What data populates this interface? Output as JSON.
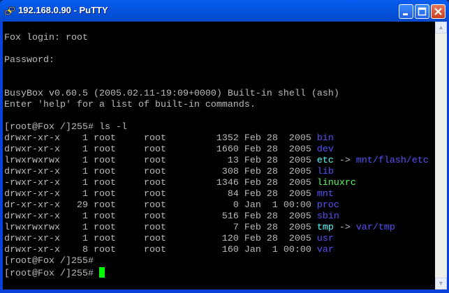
{
  "window": {
    "title": "192.168.0.90 - PuTTY"
  },
  "colors": {
    "default": "#bbbbbb",
    "directory": "#5555ff",
    "symlink": "#55ffff",
    "executable": "#55ff55",
    "cursor": "#00ff00"
  },
  "terminal": {
    "lines": [
      [],
      [
        {
          "text": "Fox login: root"
        }
      ],
      [],
      [
        {
          "text": "Password:"
        }
      ],
      [],
      [],
      [
        {
          "text": "BusyBox v0.60.5 (2005.02.11-19:09+0000) Built-in shell (ash)"
        }
      ],
      [
        {
          "text": "Enter 'help' for a list of built-in commands."
        }
      ],
      [],
      [
        {
          "text": "[root@Fox /]255# ls -l"
        }
      ],
      [
        {
          "text": "drwxr-xr-x    1 root     root         1352 Feb 28  2005 "
        },
        {
          "text": "bin",
          "color": "directory"
        }
      ],
      [
        {
          "text": "drwxr-xr-x    1 root     root         1660 Feb 28  2005 "
        },
        {
          "text": "dev",
          "color": "directory"
        }
      ],
      [
        {
          "text": "lrwxrwxrwx    1 root     root           13 Feb 28  2005 "
        },
        {
          "text": "etc",
          "color": "symlink"
        },
        {
          "text": " -> "
        },
        {
          "text": "mnt/flash/etc",
          "color": "directory"
        }
      ],
      [
        {
          "text": "drwxr-xr-x    1 root     root          308 Feb 28  2005 "
        },
        {
          "text": "lib",
          "color": "directory"
        }
      ],
      [
        {
          "text": "-rwxr-xr-x    1 root     root         1346 Feb 28  2005 "
        },
        {
          "text": "linuxrc",
          "color": "executable"
        }
      ],
      [
        {
          "text": "drwxr-xr-x    1 root     root           84 Feb 28  2005 "
        },
        {
          "text": "mnt",
          "color": "directory"
        }
      ],
      [
        {
          "text": "dr-xr-xr-x   29 root     root            0 Jan  1 00:00 "
        },
        {
          "text": "proc",
          "color": "directory"
        }
      ],
      [
        {
          "text": "drwxr-xr-x    1 root     root          516 Feb 28  2005 "
        },
        {
          "text": "sbin",
          "color": "directory"
        }
      ],
      [
        {
          "text": "lrwxrwxrwx    1 root     root            7 Feb 28  2005 "
        },
        {
          "text": "tmp",
          "color": "symlink"
        },
        {
          "text": " -> "
        },
        {
          "text": "var/tmp",
          "color": "directory"
        }
      ],
      [
        {
          "text": "drwxr-xr-x    1 root     root          120 Feb 28  2005 "
        },
        {
          "text": "usr",
          "color": "directory"
        }
      ],
      [
        {
          "text": "drwxr-xr-x    8 root     root          160 Jan  1 00:00 "
        },
        {
          "text": "var",
          "color": "directory"
        }
      ],
      [
        {
          "text": "[root@Fox /]255#"
        }
      ],
      [
        {
          "text": "[root@Fox /]255# "
        },
        {
          "cursor": true
        }
      ]
    ]
  },
  "icons": {
    "app": "putty-icon",
    "minimize": "minimize-icon",
    "maximize": "maximize-icon",
    "close": "close-icon"
  }
}
